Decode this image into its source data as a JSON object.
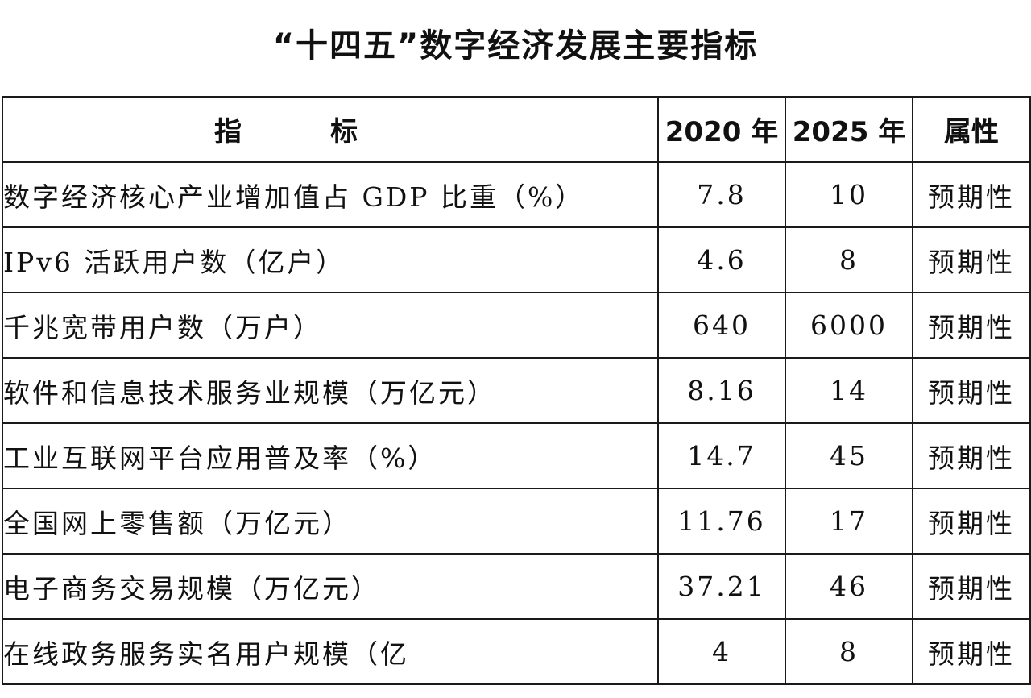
{
  "title": "“十四五”数字经济发展主要指标",
  "table": {
    "headers": {
      "indicator": "指标",
      "y2020": "2020 年",
      "y2025": "2025 年",
      "attribute": "属性"
    },
    "rows": [
      {
        "name": "数字经济核心产业增加值占 GDP 比重（%）",
        "v2020": "7.8",
        "v2025": "10",
        "attr": "预期性"
      },
      {
        "name": "IPv6 活跃用户数（亿户）",
        "v2020": "4.6",
        "v2025": "8",
        "attr": "预期性"
      },
      {
        "name": "千兆宽带用户数（万户）",
        "v2020": "640",
        "v2025": "6000",
        "attr": "预期性"
      },
      {
        "name": "软件和信息技术服务业规模（万亿元）",
        "v2020": "8.16",
        "v2025": "14",
        "attr": "预期性"
      },
      {
        "name": "工业互联网平台应用普及率（%）",
        "v2020": "14.7",
        "v2025": "45",
        "attr": "预期性"
      },
      {
        "name": "全国网上零售额（万亿元）",
        "v2020": "11.76",
        "v2025": "17",
        "attr": "预期性"
      },
      {
        "name": "电子商务交易规模（万亿元）",
        "v2020": "37.21",
        "v2025": "46",
        "attr": "预期性"
      },
      {
        "name": "在线政务服务实名用户规模（亿",
        "v2020": "4",
        "v2025": "8",
        "attr": "预期性"
      }
    ]
  }
}
